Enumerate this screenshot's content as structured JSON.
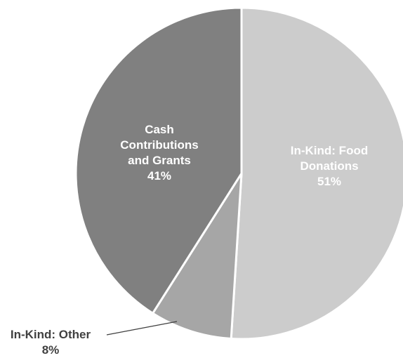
{
  "chart_data": {
    "type": "pie",
    "title": "",
    "slices": [
      {
        "label_lines": [
          "In-Kind: Food",
          "Donations"
        ],
        "percent_label": "51%",
        "value": 51,
        "color": "#cccccc",
        "label_style": "light"
      },
      {
        "label_lines": [
          "In-Kind: Other"
        ],
        "percent_label": "8%",
        "value": 8,
        "color": "#a6a6a6",
        "label_style": "dark"
      },
      {
        "label_lines": [
          "Cash",
          "Contributions",
          "and Grants"
        ],
        "percent_label": "41%",
        "value": 41,
        "color": "#808080",
        "label_style": "light"
      }
    ],
    "start": "12 o'clock",
    "direction": "clockwise",
    "legend": "none"
  }
}
